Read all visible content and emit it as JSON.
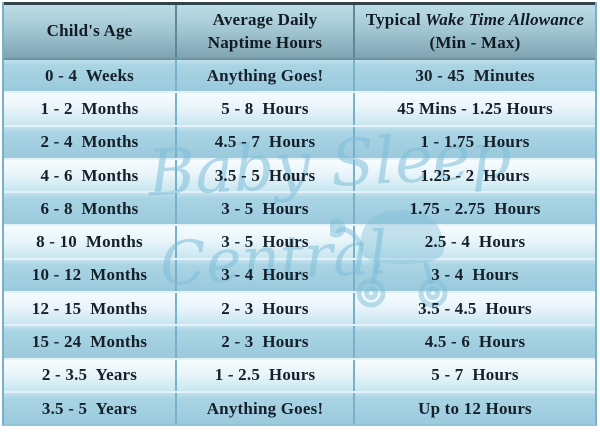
{
  "header": {
    "col1": "Child's Age",
    "col2_line1": "Average Daily",
    "col2_line2": "Naptime Hours",
    "col3_prefix": "Typical ",
    "col3_italic": "Wake Time Allowance",
    "col3_line2": "(Min - Max)"
  },
  "chart_data": {
    "type": "table",
    "columns": [
      "Child's Age",
      "Average Daily Naptime Hours",
      "Typical Wake Time Allowance (Min - Max)"
    ],
    "rows": [
      [
        "0 - 4  Weeks",
        "Anything Goes!",
        "30 - 45  Minutes"
      ],
      [
        "1 - 2  Months",
        "5 - 8  Hours",
        "45 Mins - 1.25 Hours"
      ],
      [
        "2 - 4  Months",
        "4.5 - 7  Hours",
        "1 - 1.75  Hours"
      ],
      [
        "4 - 6  Months",
        "3.5 - 5  Hours",
        "1.25 - 2  Hours"
      ],
      [
        "6 - 8  Months",
        "3 - 5  Hours",
        "1.75 - 2.75  Hours"
      ],
      [
        "8 - 10  Months",
        "3 - 5  Hours",
        "2.5 - 4  Hours"
      ],
      [
        "10 - 12  Months",
        "3 - 4  Hours",
        "3 - 4  Hours"
      ],
      [
        "12 - 15  Months",
        "2 - 3  Hours",
        "3.5 - 4.5  Hours"
      ],
      [
        "15 - 24  Months",
        "2 - 3  Hours",
        "4.5 - 6  Hours"
      ],
      [
        "2 - 3.5  Years",
        "1 - 2.5  Hours",
        "5 - 7  Hours"
      ],
      [
        "3.5 - 5  Years",
        "Anything Goes!",
        "Up to 12 Hours"
      ]
    ]
  },
  "watermark": {
    "line1": "Baby Sleep",
    "line2": "Central"
  },
  "colors": {
    "row_dark": "#9bcadd",
    "row_light": "#e9f5fa",
    "header_top": "#bcdde6",
    "header_bottom": "#7fa3b1",
    "grid_line": "#79b1ca",
    "text": "#15202b",
    "watermark": "#7ebed8"
  }
}
